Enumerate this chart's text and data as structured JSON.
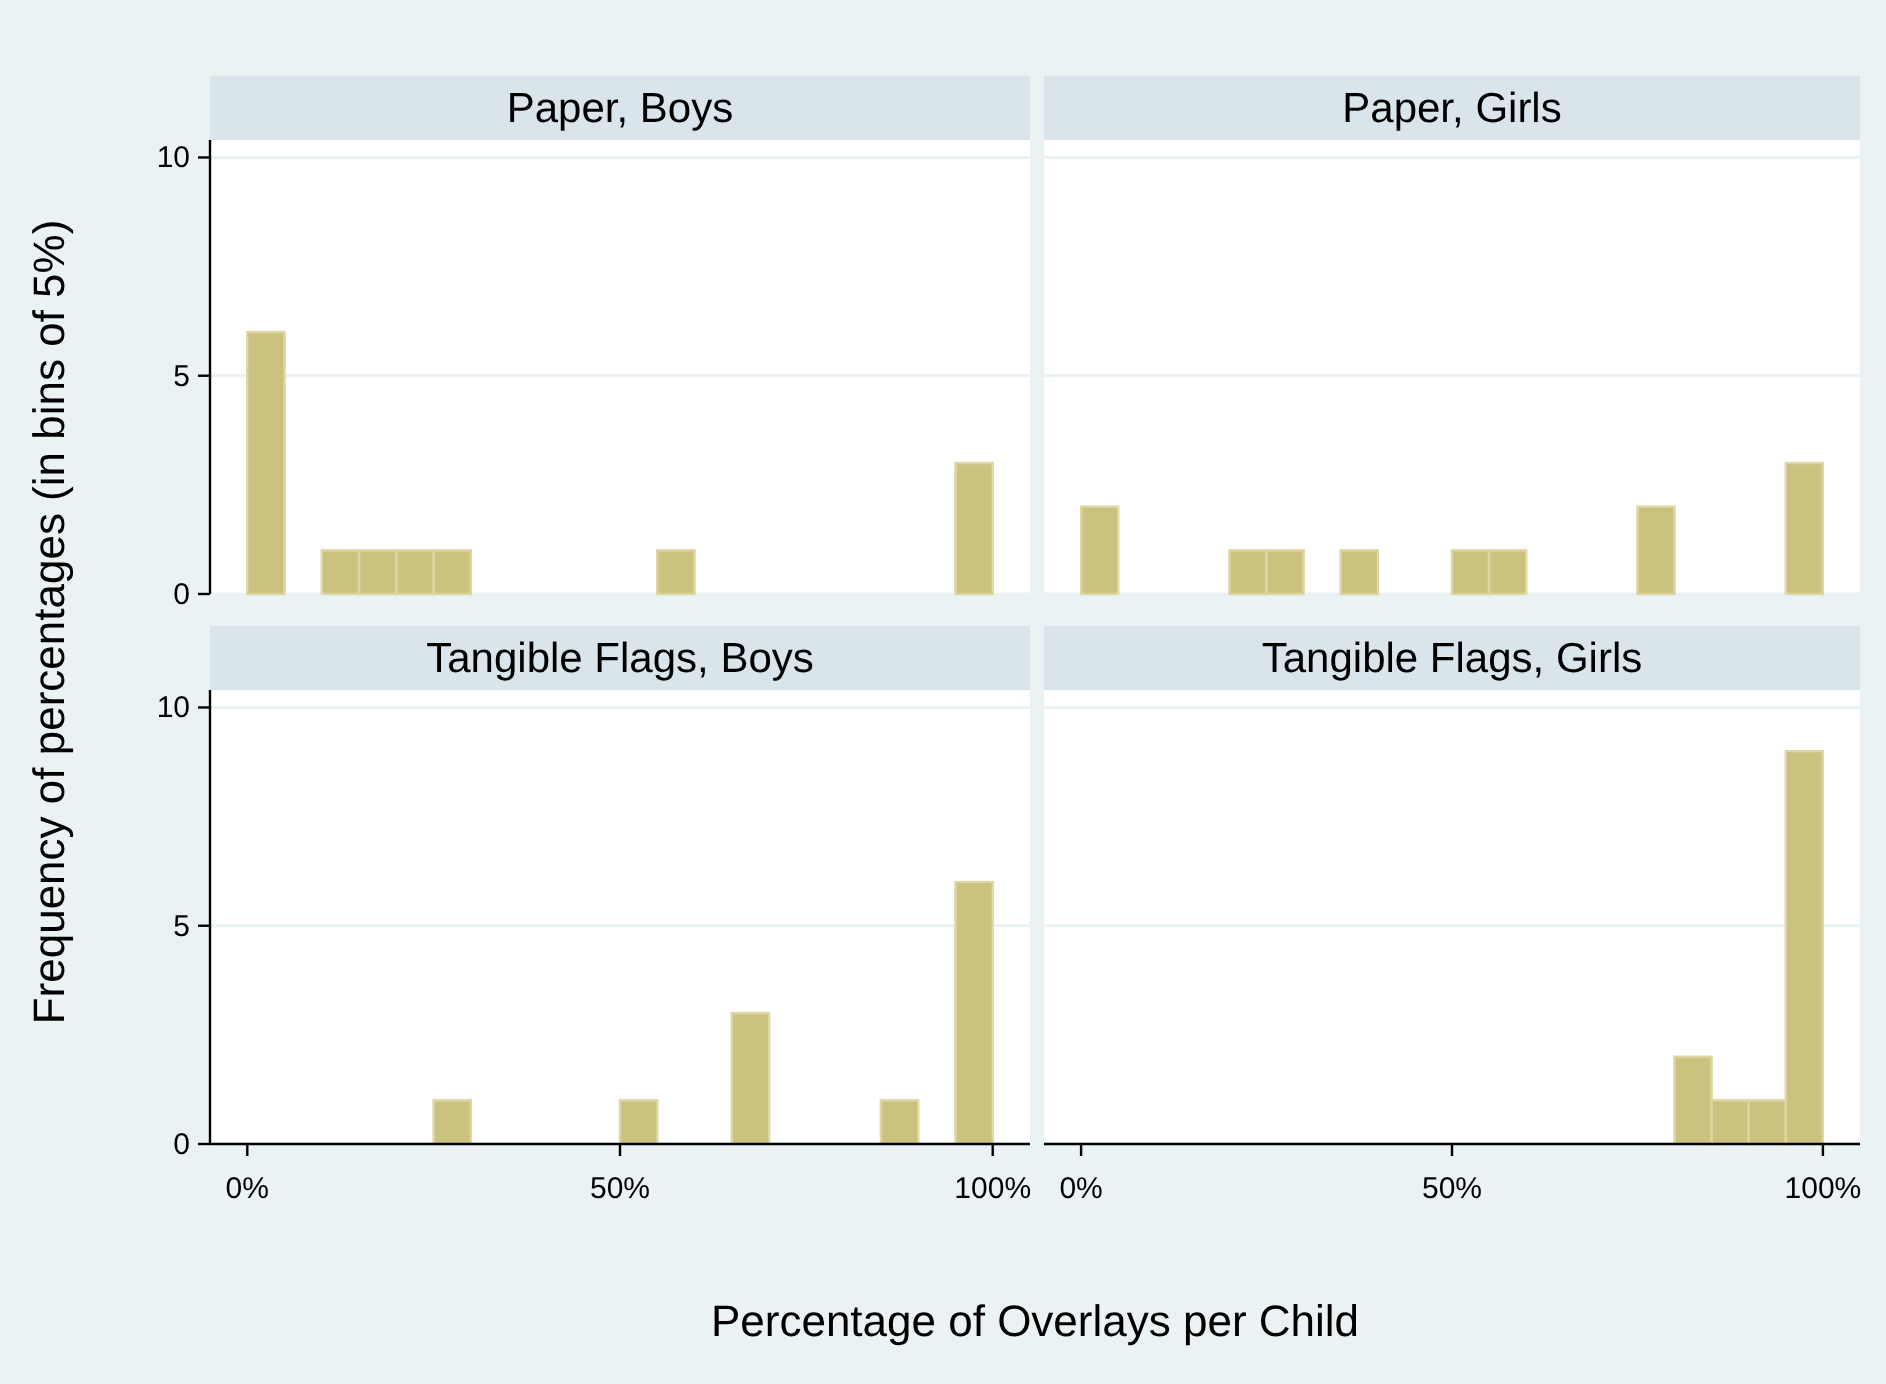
{
  "chart_data": [
    {
      "type": "histogram",
      "title": "Paper, Boys",
      "ylabel": "Frequency of percentages (in bins of 5%)",
      "bins": [
        0,
        5,
        10,
        15,
        20,
        25,
        30,
        35,
        40,
        45,
        50,
        55,
        60,
        65,
        70,
        75,
        80,
        85,
        90,
        95,
        100
      ],
      "values": [
        6,
        0,
        1,
        1,
        1,
        1,
        0,
        0,
        0,
        0,
        0,
        1,
        0,
        0,
        0,
        0,
        0,
        0,
        0,
        3
      ],
      "color": "#ccc27f",
      "xlim": [
        -5,
        105
      ],
      "ylim": [
        0,
        10.4
      ],
      "yticks": [
        0,
        5,
        10
      ],
      "grid": "y",
      "tick_labels": "y"
    },
    {
      "type": "histogram",
      "title": "Paper, Girls",
      "bins": [
        0,
        5,
        10,
        15,
        20,
        25,
        30,
        35,
        40,
        45,
        50,
        55,
        60,
        65,
        70,
        75,
        80,
        85,
        90,
        95,
        100
      ],
      "values": [
        2,
        0,
        0,
        0,
        1,
        1,
        0,
        1,
        0,
        0,
        1,
        1,
        0,
        0,
        0,
        2,
        0,
        0,
        0,
        3
      ],
      "color": "#ccc27f",
      "xlim": [
        -5,
        105
      ],
      "ylim": [
        0,
        10.4
      ],
      "yticks": [
        0,
        5,
        10
      ],
      "grid": "y",
      "tick_labels": false
    },
    {
      "type": "histogram",
      "title": "Tangible Flags, Boys",
      "xlabel": "Percentage of Overlays per Child",
      "bins": [
        0,
        5,
        10,
        15,
        20,
        25,
        30,
        35,
        40,
        45,
        50,
        55,
        60,
        65,
        70,
        75,
        80,
        85,
        90,
        95,
        100
      ],
      "values": [
        0,
        0,
        0,
        0,
        0,
        1,
        0,
        0,
        0,
        0,
        1,
        0,
        0,
        3,
        0,
        0,
        0,
        1,
        0,
        6
      ],
      "color": "#ccc27f",
      "xlim": [
        -5,
        105
      ],
      "ylim": [
        0,
        10.4
      ],
      "xticks": [
        {
          "value": 0,
          "label": "0%"
        },
        {
          "value": 50,
          "label": "50%"
        },
        {
          "value": 100,
          "label": "100%"
        }
      ],
      "yticks": [
        0,
        5,
        10
      ],
      "grid": "y"
    },
    {
      "type": "histogram",
      "title": "Tangible Flags, Girls",
      "bins": [
        0,
        5,
        10,
        15,
        20,
        25,
        30,
        35,
        40,
        45,
        50,
        55,
        60,
        65,
        70,
        75,
        80,
        85,
        90,
        95,
        100
      ],
      "values": [
        0,
        0,
        0,
        0,
        0,
        0,
        0,
        0,
        0,
        0,
        0,
        0,
        0,
        0,
        0,
        0,
        2,
        1,
        1,
        9
      ],
      "color": "#ccc27f",
      "xlim": [
        -5,
        105
      ],
      "ylim": [
        0,
        10.4
      ],
      "xticks": [
        {
          "value": 0,
          "label": "0%"
        },
        {
          "value": 50,
          "label": "50%"
        },
        {
          "value": 100,
          "label": "100%"
        }
      ],
      "yticks": [
        0,
        5,
        10
      ],
      "grid": "y",
      "tick_labels": "x"
    }
  ]
}
